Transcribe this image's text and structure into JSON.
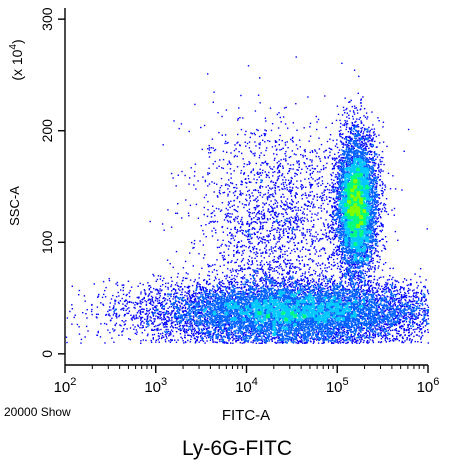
{
  "chart_data": {
    "type": "scatter",
    "title": "Ly-6G-FITC",
    "xlabel": "FITC-A",
    "ylabel": "SSC-A",
    "y_multiplier": "(x 10^4)",
    "x_scale": "log",
    "y_scale": "linear",
    "xlim": [
      100,
      1000000
    ],
    "ylim": [
      -10,
      310
    ],
    "x_ticks": [
      {
        "value": 100,
        "base": "10",
        "exp": "2"
      },
      {
        "value": 1000,
        "base": "10",
        "exp": "3"
      },
      {
        "value": 10000,
        "base": "10",
        "exp": "4"
      },
      {
        "value": 100000,
        "base": "10",
        "exp": "5"
      },
      {
        "value": 1000000,
        "base": "10",
        "exp": "6"
      }
    ],
    "y_ticks": [
      {
        "value": 0,
        "label": "0"
      },
      {
        "value": 100,
        "label": "100"
      },
      {
        "value": 200,
        "label": "200"
      },
      {
        "value": 300,
        "label": "300"
      }
    ],
    "event_count_label": "20000 Show",
    "grid": false,
    "legend": "none",
    "colormap": [
      "#0000ff",
      "#0060ff",
      "#00c8ff",
      "#00ff80",
      "#80ff00"
    ],
    "populations": [
      {
        "x_center": 30000,
        "y_center": 38,
        "x_spread_decades": 1.6,
        "y_sd": 14,
        "events": 11000
      },
      {
        "x_center": 160000,
        "y_center": 135,
        "x_spread_decades": 0.22,
        "y_sd": 30,
        "events": 7000
      },
      {
        "x_center": 20000,
        "y_center": 120,
        "x_spread_decades": 0.9,
        "y_sd": 45,
        "events": 2000
      }
    ]
  }
}
